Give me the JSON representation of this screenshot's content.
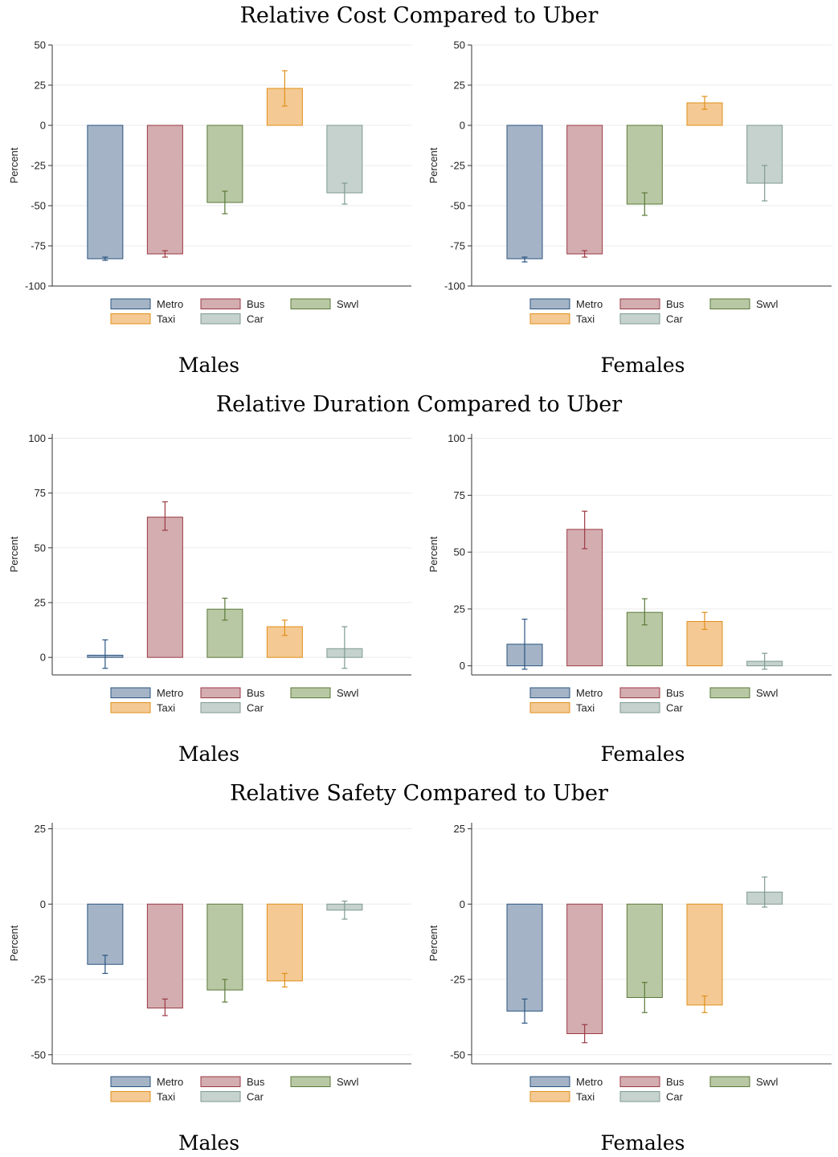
{
  "section_titles": [
    "Relative Cost Compared to Uber",
    "Relative Duration Compared to Uber",
    "Relative Safety Compared to Uber"
  ],
  "panel_labels": [
    "Males",
    "Females"
  ],
  "legend": [
    {
      "name": "Metro",
      "color": "#a4b4c6",
      "stroke": "#2b5580"
    },
    {
      "name": "Bus",
      "color": "#d3adb0",
      "stroke": "#9b3a44"
    },
    {
      "name": "Swvl",
      "color": "#b9c8a4",
      "stroke": "#5a7a3a"
    },
    {
      "name": "Taxi",
      "color": "#f4c994",
      "stroke": "#e0901a"
    },
    {
      "name": "Car",
      "color": "#c5d2cd",
      "stroke": "#7f9a90"
    }
  ],
  "chart_data": [
    {
      "type": "bar",
      "section": "Relative Cost Compared to Uber",
      "panel": "Males",
      "categories": [
        "Metro",
        "Bus",
        "Swvl",
        "Taxi",
        "Car"
      ],
      "values": [
        -83,
        -80,
        -48,
        23,
        -42
      ],
      "ci_low": [
        -84,
        -82,
        -55,
        12,
        -49
      ],
      "ci_high": [
        -82,
        -78,
        -41,
        34,
        -36
      ],
      "ylabel": "Percent",
      "ylim": [
        -100,
        50
      ],
      "yticks": [
        50,
        25,
        0,
        -25,
        -50,
        -75,
        -100
      ],
      "grid": true
    },
    {
      "type": "bar",
      "section": "Relative Cost Compared to Uber",
      "panel": "Females",
      "categories": [
        "Metro",
        "Bus",
        "Swvl",
        "Taxi",
        "Car"
      ],
      "values": [
        -83,
        -80,
        -49,
        14,
        -36
      ],
      "ci_low": [
        -85,
        -82,
        -56,
        10,
        -47
      ],
      "ci_high": [
        -82,
        -78,
        -42,
        18,
        -25
      ],
      "ylabel": "Percent",
      "ylim": [
        -100,
        50
      ],
      "yticks": [
        50,
        25,
        0,
        -25,
        -50,
        -75,
        -100
      ],
      "grid": true
    },
    {
      "type": "bar",
      "section": "Relative Duration Compared to Uber",
      "panel": "Males",
      "categories": [
        "Metro",
        "Bus",
        "Swvl",
        "Taxi",
        "Car"
      ],
      "values": [
        1,
        64,
        22,
        14,
        4
      ],
      "ci_low": [
        -5,
        58,
        17,
        10,
        -5
      ],
      "ci_high": [
        8,
        71,
        27,
        17,
        14
      ],
      "ylabel": "Percent",
      "ylim": [
        -8,
        102
      ],
      "yticks": [
        100,
        75,
        50,
        25,
        0
      ],
      "grid": true
    },
    {
      "type": "bar",
      "section": "Relative Duration Compared to Uber",
      "panel": "Females",
      "categories": [
        "Metro",
        "Bus",
        "Swvl",
        "Taxi",
        "Car"
      ],
      "values": [
        9.5,
        60,
        23.5,
        19.5,
        2
      ],
      "ci_low": [
        -1.5,
        51.5,
        18,
        16,
        -1.5
      ],
      "ci_high": [
        20.5,
        68,
        29.5,
        23.5,
        5.5
      ],
      "ylabel": "Percent",
      "ylim": [
        -4,
        102
      ],
      "yticks": [
        100,
        75,
        50,
        25,
        0
      ],
      "grid": true
    },
    {
      "type": "bar",
      "section": "Relative Safety Compared to Uber",
      "panel": "Males",
      "categories": [
        "Metro",
        "Bus",
        "Swvl",
        "Taxi",
        "Car"
      ],
      "values": [
        -20,
        -34.5,
        -28.5,
        -25.5,
        -2
      ],
      "ci_low": [
        -23,
        -37,
        -32.5,
        -27.5,
        -5
      ],
      "ci_high": [
        -17,
        -31.5,
        -25,
        -23,
        1
      ],
      "ylabel": "Percent",
      "ylim": [
        -53,
        27
      ],
      "yticks": [
        25,
        0,
        -25,
        -50
      ],
      "grid": true
    },
    {
      "type": "bar",
      "section": "Relative Safety Compared to Uber",
      "panel": "Females",
      "categories": [
        "Metro",
        "Bus",
        "Swvl",
        "Taxi",
        "Car"
      ],
      "values": [
        -35.5,
        -43,
        -31,
        -33.5,
        4
      ],
      "ci_low": [
        -39.5,
        -46,
        -36,
        -36,
        -1
      ],
      "ci_high": [
        -31.5,
        -40,
        -26,
        -30.5,
        9
      ],
      "ylabel": "Percent",
      "ylim": [
        -53,
        27
      ],
      "yticks": [
        25,
        0,
        -25,
        -50
      ],
      "grid": true
    }
  ]
}
